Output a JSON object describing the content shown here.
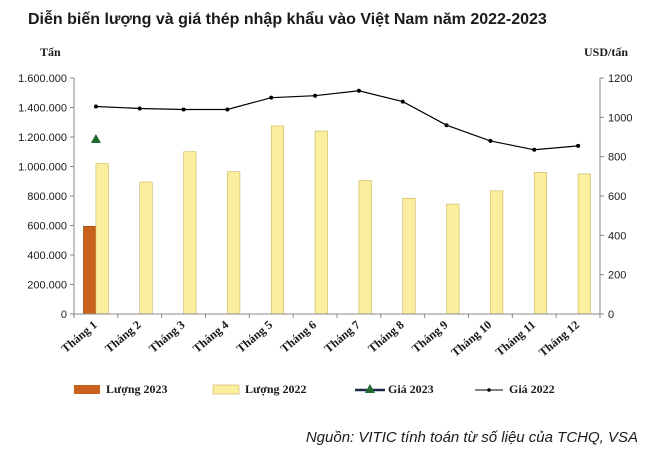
{
  "chart_data": {
    "type": "bar",
    "title": "Diễn biến lượng và giá thép nhập khẩu vào Việt Nam năm 2022-2023",
    "ylabel_left": "Tấn",
    "ylabel_right": "USD/tấn",
    "categories": [
      "Tháng 1",
      "Tháng 2",
      "Tháng 3",
      "Tháng 4",
      "Tháng 5",
      "Tháng 6",
      "Tháng 7",
      "Tháng 8",
      "Tháng 9",
      "Tháng 10",
      "Tháng 11",
      "Tháng 12"
    ],
    "ylim_left": [
      0,
      1600000
    ],
    "ylim_right": [
      0,
      1200
    ],
    "yticks_left": [
      "0",
      "200.000",
      "400.000",
      "600.000",
      "800.000",
      "1.000.000",
      "1.200.000",
      "1.400.000",
      "1.600.000"
    ],
    "yticks_right": [
      "0",
      "200",
      "400",
      "600",
      "800",
      "1000",
      "1200"
    ],
    "series": [
      {
        "name": "Lượng 2023",
        "type": "bar",
        "axis": "left",
        "color": "#c8621c",
        "values": [
          595000,
          null,
          null,
          null,
          null,
          null,
          null,
          null,
          null,
          null,
          null,
          null
        ]
      },
      {
        "name": "Lượng 2022",
        "type": "bar",
        "axis": "left",
        "color": "#fbee9f",
        "values": [
          1020000,
          895000,
          1100000,
          965000,
          1275000,
          1240000,
          905000,
          785000,
          745000,
          835000,
          960000,
          950000
        ]
      },
      {
        "name": "Giá 2023",
        "type": "line",
        "axis": "right",
        "color": "#1e6b2e",
        "values": [
          890,
          null,
          null,
          null,
          null,
          null,
          null,
          null,
          null,
          null,
          null,
          null
        ]
      },
      {
        "name": "Giá 2022",
        "type": "line",
        "axis": "right",
        "color": "#000000",
        "values": [
          1055,
          1045,
          1040,
          1040,
          1100,
          1110,
          1135,
          1080,
          960,
          880,
          835,
          855
        ]
      }
    ],
    "grid": false,
    "legend_position": "bottom",
    "source": "Nguồn: VITIC tính toán từ số liệu của TCHQ, VSA"
  }
}
